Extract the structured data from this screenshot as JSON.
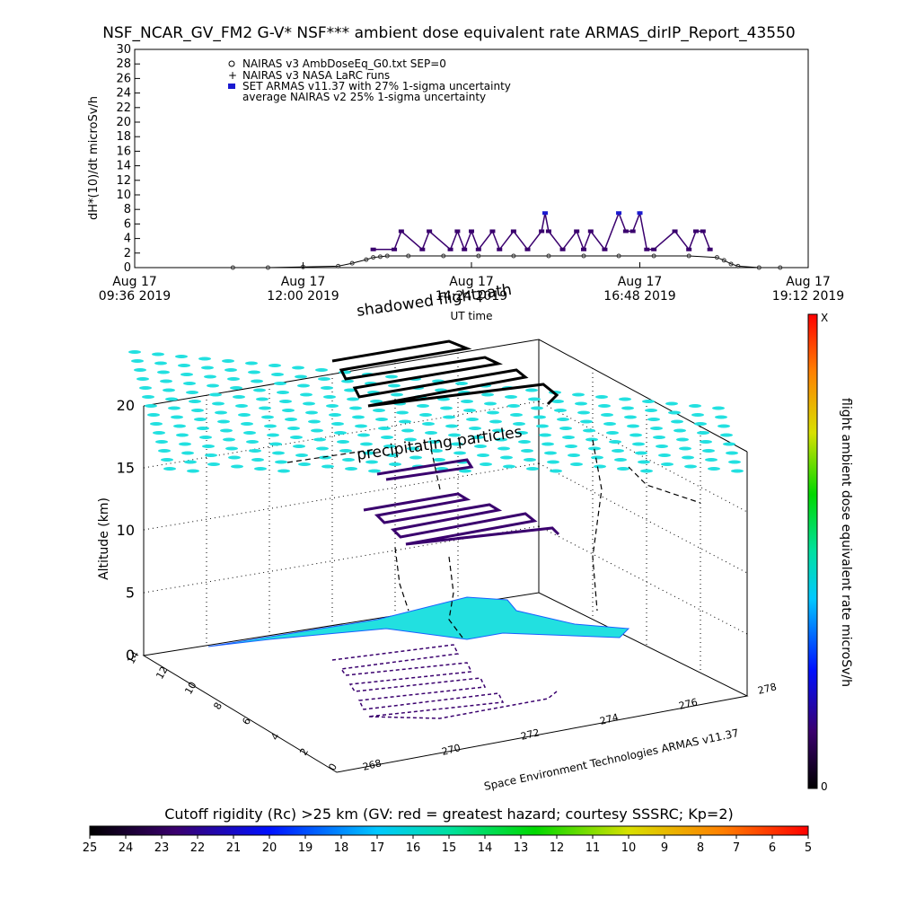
{
  "colors": {
    "fm2_series": "#3a006e",
    "armas_series": "#1a1ad0",
    "cyan_layer": "#22e0e0",
    "flight_dark": "#000000",
    "flight_purple": "#3a006e"
  },
  "chart_data": [
    {
      "type": "line",
      "title": "NSF_NCAR_GV_FM2 G-V* NSF*** ambient dose equivalent rate ARMAS_dirIP_Report_43550",
      "xlabel": "UT time",
      "ylabel": "dH*(10)/dt microSv/h",
      "ylim": [
        0,
        30
      ],
      "y_ticks": [
        "0",
        "2",
        "4",
        "6",
        "8",
        "10",
        "12",
        "14",
        "16",
        "18",
        "20",
        "22",
        "24",
        "26",
        "28",
        "30"
      ],
      "x_ticks": [
        {
          "line1": "Aug 17",
          "line2": "09:36 2019"
        },
        {
          "line1": "Aug 17",
          "line2": "12:00 2019"
        },
        {
          "line1": "Aug 17",
          "line2": "14:24 2019"
        },
        {
          "line1": "Aug 17",
          "line2": "16:48 2019"
        },
        {
          "line1": "Aug 17",
          "line2": "19:12 2019"
        }
      ],
      "x_start_hours": 9.6,
      "x_end_hours": 19.2,
      "legend": [
        "NAIRAS v3 AmbDoseEq_G0.txt SEP=0",
        "NAIRAS v3 NASA LaRC runs",
        "SET ARMAS v11.37 with 27% 1-sigma uncertainty",
        "average NAIRAS v2 25% 1-sigma uncertainty"
      ],
      "legend_placement": "top-left",
      "series": [
        {
          "name": "NAIRAS v3 AmbDoseEq_G0.txt SEP=0",
          "x_hours": [
            11.0,
            11.5,
            12.0,
            12.5,
            12.7,
            12.9,
            13.0,
            13.1,
            13.2,
            13.5,
            14.0,
            14.5,
            15.0,
            15.5,
            16.0,
            16.5,
            17.0,
            17.5,
            17.9,
            18.0,
            18.1,
            18.2,
            18.5,
            18.8
          ],
          "values": [
            0.0,
            0.0,
            0.1,
            0.2,
            0.6,
            1.1,
            1.4,
            1.5,
            1.6,
            1.6,
            1.6,
            1.6,
            1.6,
            1.6,
            1.6,
            1.6,
            1.6,
            1.6,
            1.4,
            1.0,
            0.5,
            0.2,
            0.0,
            0.0
          ]
        },
        {
          "name": "SET ARMAS v11.37 with 27% 1-sigma uncertainty",
          "x_hours": [
            13.0,
            13.3,
            13.4,
            13.7,
            13.8,
            14.1,
            14.2,
            14.3,
            14.4,
            14.5,
            14.7,
            14.8,
            15.0,
            15.2,
            15.4,
            15.45,
            15.5,
            15.7,
            15.9,
            16.0,
            16.1,
            16.3,
            16.5,
            16.6,
            16.7,
            16.8,
            16.9,
            17.0,
            17.3,
            17.5,
            17.6,
            17.7,
            17.8
          ],
          "values": [
            2.5,
            2.5,
            5.0,
            2.5,
            5.0,
            2.5,
            5.0,
            2.5,
            5.0,
            2.5,
            5.0,
            2.5,
            5.0,
            2.5,
            5.0,
            7.5,
            5.0,
            2.5,
            5.0,
            2.5,
            5.0,
            2.5,
            7.5,
            5.0,
            5.0,
            7.5,
            2.5,
            2.5,
            5.0,
            2.5,
            5.0,
            5.0,
            2.5
          ]
        }
      ]
    },
    {
      "type": "scatter",
      "zlabel": "Altitude (km)",
      "z_ticks": [
        "0",
        "5",
        "10",
        "15",
        "20"
      ],
      "lon_ticks": [
        "268",
        "270",
        "272",
        "274",
        "276",
        "278"
      ],
      "lat_ticks": [
        "0",
        "2",
        "4",
        "6",
        "8",
        "10",
        "12",
        "14"
      ],
      "annotations": [
        "shadowed flightpath",
        "precipitating particles"
      ],
      "credit": "Space Environment Technologies ARMAS v11.37",
      "colorbar": {
        "label": "flight ambient dose equivalent rate microSv/h",
        "max_label": "X",
        "min_label": "0"
      }
    },
    {
      "type": "heatmap",
      "title": "Cutoff rigidity (Rc) >25 km (GV: red = greatest hazard; courtesy SSSRC; Kp=2)",
      "ticks": [
        "25",
        "24",
        "23",
        "22",
        "21",
        "20",
        "19",
        "18",
        "17",
        "16",
        "15",
        "14",
        "13",
        "12",
        "11",
        "10",
        "9",
        "8",
        "7",
        "6",
        "5"
      ]
    }
  ]
}
